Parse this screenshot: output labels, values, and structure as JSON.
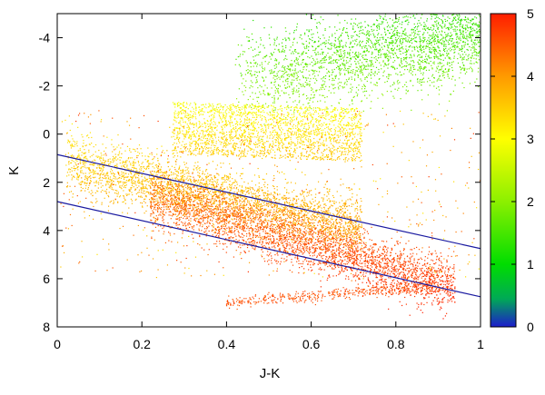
{
  "chart_data": {
    "type": "scatter",
    "title": "",
    "xlabel": "J-K",
    "ylabel": "K",
    "xlim": [
      0,
      1
    ],
    "ylim": [
      8,
      -5
    ],
    "y_inverted": true,
    "x_ticks": [
      0,
      0.2,
      0.4,
      0.6,
      0.8,
      1
    ],
    "x_tick_labels": [
      "0",
      "0.2",
      "0.4",
      "0.6",
      "0.8",
      "1"
    ],
    "y_ticks": [
      -4,
      -2,
      0,
      2,
      4,
      6,
      8
    ],
    "y_tick_labels": [
      "-4",
      "-2",
      "0",
      "2",
      "4",
      "6",
      "8"
    ],
    "grid": false,
    "legend": "none",
    "colorbar": {
      "min": 0,
      "max": 5,
      "ticks": [
        0,
        1,
        2,
        3,
        4,
        5
      ],
      "tick_labels": [
        "0",
        "1",
        "2",
        "3",
        "4",
        "5"
      ],
      "colors": [
        "#1c1ccc",
        "#00cc00",
        "#7fff00",
        "#ffff00",
        "#ff9900",
        "#ff2200"
      ]
    },
    "density_regions": [
      {
        "name": "green-branch",
        "value_range": [
          1.2,
          2.0
        ],
        "x_range": [
          0.4,
          1.0
        ],
        "y_range": [
          -5,
          -1
        ],
        "color": "#5fe23a"
      },
      {
        "name": "yellow-clump",
        "value_range": [
          2.8,
          3.2
        ],
        "x_range": [
          0.25,
          0.7
        ],
        "y_range": [
          -1.5,
          1.0
        ],
        "color": "#ffd400"
      },
      {
        "name": "orange-sequence",
        "value_range": [
          3.4,
          3.9
        ],
        "x_range": [
          0.0,
          0.7
        ],
        "y_range": [
          0.5,
          4.0
        ],
        "color": "#ff9a00"
      },
      {
        "name": "red-sequence",
        "value_range": [
          4.3,
          5.0
        ],
        "x_range": [
          0.2,
          0.95
        ],
        "y_range": [
          2.5,
          7.3
        ],
        "color": "#ff3000"
      }
    ],
    "reference_lines": [
      {
        "name": "upper-boundary",
        "points": [
          [
            0,
            0.85
          ],
          [
            1,
            4.75
          ]
        ],
        "color": "#1a1aa0"
      },
      {
        "name": "lower-boundary",
        "points": [
          [
            0,
            2.8
          ],
          [
            1,
            6.75
          ]
        ],
        "color": "#1a1aa0"
      }
    ]
  }
}
